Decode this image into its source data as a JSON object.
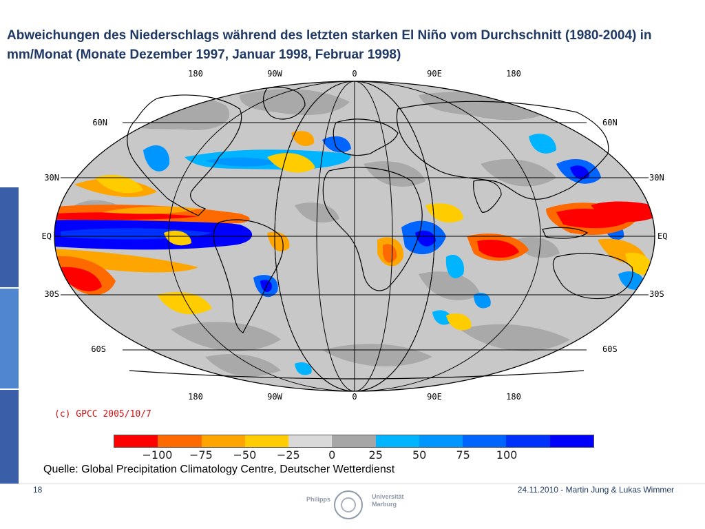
{
  "title": "Abweichungen des Niederschlags während des letzten starken El Niño vom Durchschnitt (1980-2004) in mm/Monat (Monate Dezember 1997, Januar 1998, Februar 1998)",
  "map": {
    "top_lon_labels": [
      "180",
      "90W",
      "0",
      "90E",
      "180"
    ],
    "bottom_lon_labels": [
      "180",
      "90W",
      "0",
      "90E",
      "180"
    ],
    "lat_labels_left": [
      "60N",
      "30N",
      "EQ",
      "30S",
      "60S"
    ],
    "lat_labels_right": [
      "60N",
      "30N",
      "EQ",
      "30S",
      "60S"
    ],
    "background_color": "#c8c8c8",
    "land_outline_color": "#000000"
  },
  "copyright": "(c) GPCC 2005/10/7",
  "colorbar": {
    "colors": [
      "#ff0000",
      "#ff6a00",
      "#ffa500",
      "#ffcc00",
      "#d9d9d9",
      "#a6a6a6",
      "#00b4ff",
      "#0096ff",
      "#0064ff",
      "#0032ff",
      "#0000ff"
    ],
    "labels": [
      "−100",
      "−75",
      "−50",
      "−25",
      "0",
      "25",
      "50",
      "75",
      "100"
    ]
  },
  "source": "Quelle: Global Precipitation Climatology Centre, Deutscher Wetterdienst",
  "footer": {
    "page_number": "18",
    "date_authors": "24.11.2010 - Martin Jung & Lukas Wimmer"
  },
  "logo": {
    "left_text": "Philipps",
    "right_line1": "Universität",
    "right_line2": "Marburg"
  },
  "side_bar_colors": [
    "#3a5ea8",
    "#4f86cf",
    "#3a5ea8"
  ]
}
